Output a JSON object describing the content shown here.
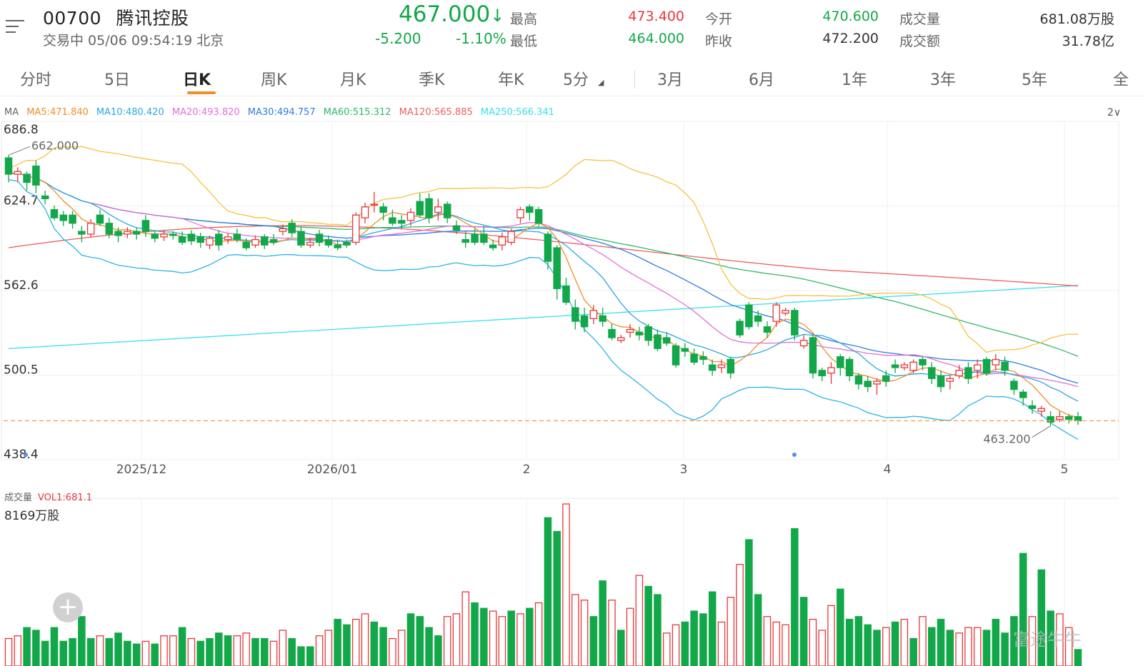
{
  "header": {
    "code": "00700",
    "name": "腾讯控股",
    "status": "交易中 05/06 09:54:19 北京",
    "price": "467.000",
    "change": "-5.200",
    "change_pct": "-1.10%",
    "high_label": "最高",
    "high": "473.400",
    "low_label": "最低",
    "low": "464.000",
    "open_label": "今开",
    "open": "470.600",
    "prev_label": "昨收",
    "prev": "472.200",
    "volume_label": "成交量",
    "volume": "681.08万股",
    "turnover_label": "成交额",
    "turnover": "31.78亿"
  },
  "tabs": [
    "分时",
    "5日",
    "日K",
    "周K",
    "月K",
    "季K",
    "年K",
    "5分",
    "3月",
    "6月",
    "1年",
    "3年",
    "5年",
    "全"
  ],
  "ma_legend": {
    "ma": "MA",
    "ma5": "MA5:471.840",
    "ma10": "MA10:480.420",
    "ma20": "MA20:493.820",
    "ma30": "MA30:494.757",
    "ma60": "MA60:515.312",
    "ma120": "MA120:565.885",
    "ma250": "MA250:566.341"
  },
  "scale_toggle": "2∨",
  "volume_panel": {
    "label": "成交量",
    "vol1": "VOL1:681.1",
    "max": "8169万股"
  },
  "add_button": "+",
  "watermark": "富途牛牛",
  "colors": {
    "up": "#e8373a",
    "down": "#12a84a",
    "ma5": "#f28c28",
    "ma10": "#2aa8df",
    "ma20": "#e36ed8",
    "ma30": "#2b7de0",
    "ma60": "#30b86a",
    "ma120": "#ee5e5e",
    "ma250": "#38e0ec",
    "boll_upper": "#f5c242",
    "boll_lower": "#2bb4e3"
  },
  "chart_data": {
    "type": "candlestick",
    "y_ticks": [
      "686.8",
      "624.7",
      "562.6",
      "500.5",
      "438.4"
    ],
    "ylim": [
      438.4,
      686.8
    ],
    "x_labels": [
      "2025/12",
      "2026/01",
      "2",
      "3",
      "4",
      "5"
    ],
    "annotations": {
      "high_marker": "662.000",
      "low_marker": "463.200"
    },
    "last_price_line": 467.0,
    "candles": [
      [
        660,
        648,
        662,
        642
      ],
      [
        648,
        650,
        653,
        642
      ],
      [
        648,
        642,
        650,
        636
      ],
      [
        654,
        640,
        658,
        634
      ],
      [
        632,
        630,
        636,
        626
      ],
      [
        622,
        616,
        625,
        614
      ],
      [
        618,
        614,
        621,
        610
      ],
      [
        618,
        612,
        621,
        608
      ],
      [
        606,
        604,
        610,
        598
      ],
      [
        604,
        612,
        615,
        602
      ],
      [
        618,
        612,
        622,
        610
      ],
      [
        612,
        604,
        616,
        601
      ],
      [
        606,
        603,
        609,
        598
      ],
      [
        604,
        606,
        609,
        601
      ],
      [
        606,
        604,
        609,
        600
      ],
      [
        614,
        606,
        618,
        602
      ],
      [
        604,
        601,
        607,
        598
      ],
      [
        602,
        604,
        607,
        599
      ],
      [
        604,
        603,
        606,
        600
      ],
      [
        602,
        598,
        606,
        596
      ],
      [
        604,
        599,
        607,
        596
      ],
      [
        602,
        598,
        605,
        594
      ],
      [
        596,
        601,
        603,
        593
      ],
      [
        604,
        596,
        607,
        592
      ],
      [
        600,
        602,
        605,
        597
      ],
      [
        604,
        600,
        608,
        598
      ],
      [
        598,
        594,
        601,
        592
      ],
      [
        596,
        600,
        603,
        594
      ],
      [
        602,
        596,
        604,
        593
      ],
      [
        600,
        598,
        604,
        596
      ],
      [
        606,
        608,
        611,
        603
      ],
      [
        612,
        605,
        615,
        602
      ],
      [
        606,
        596,
        609,
        594
      ],
      [
        596,
        598,
        601,
        594
      ],
      [
        604,
        598,
        607,
        595
      ],
      [
        600,
        596,
        603,
        594
      ],
      [
        596,
        594,
        600,
        592
      ],
      [
        598,
        596,
        600,
        594
      ],
      [
        598,
        618,
        620,
        596
      ],
      [
        616,
        624,
        627,
        612
      ],
      [
        626,
        626,
        635,
        620
      ],
      [
        624,
        620,
        627,
        614
      ],
      [
        616,
        612,
        622,
        610
      ],
      [
        614,
        612,
        618,
        608
      ],
      [
        614,
        620,
        623,
        610
      ],
      [
        628,
        618,
        634,
        616
      ],
      [
        630,
        616,
        634,
        612
      ],
      [
        620,
        624,
        630,
        614
      ],
      [
        626,
        616,
        628,
        612
      ],
      [
        610,
        607,
        614,
        604
      ],
      [
        600,
        598,
        606,
        594
      ],
      [
        604,
        598,
        608,
        596
      ],
      [
        604,
        598,
        610,
        596
      ],
      [
        596,
        594,
        600,
        592
      ],
      [
        596,
        602,
        605,
        592
      ],
      [
        598,
        606,
        608,
        596
      ],
      [
        616,
        622,
        624,
        612
      ],
      [
        624,
        620,
        626,
        614
      ],
      [
        622,
        612,
        624,
        610
      ],
      [
        604,
        584,
        606,
        578
      ],
      [
        594,
        564,
        596,
        556
      ],
      [
        566,
        554,
        572,
        552
      ],
      [
        550,
        540,
        556,
        534
      ],
      [
        544,
        536,
        550,
        532
      ],
      [
        542,
        548,
        552,
        538
      ],
      [
        544,
        540,
        550,
        536
      ],
      [
        534,
        528,
        538,
        526
      ],
      [
        526,
        528,
        530,
        524
      ],
      [
        532,
        534,
        538,
        528
      ],
      [
        532,
        530,
        536,
        526
      ],
      [
        536,
        526,
        538,
        522
      ],
      [
        530,
        520,
        534,
        518
      ],
      [
        528,
        524,
        532,
        522
      ],
      [
        522,
        508,
        524,
        506
      ],
      [
        520,
        518,
        524,
        514
      ],
      [
        516,
        510,
        520,
        508
      ],
      [
        514,
        512,
        518,
        508
      ],
      [
        508,
        504,
        512,
        500
      ],
      [
        506,
        508,
        512,
        502
      ],
      [
        512,
        502,
        514,
        498
      ],
      [
        540,
        530,
        542,
        528
      ],
      [
        552,
        536,
        554,
        534
      ],
      [
        544,
        540,
        548,
        536
      ],
      [
        536,
        532,
        540,
        528
      ],
      [
        540,
        552,
        554,
        536
      ],
      [
        546,
        548,
        550,
        544
      ],
      [
        548,
        530,
        550,
        526
      ],
      [
        522,
        526,
        530,
        520
      ],
      [
        528,
        502,
        530,
        498
      ],
      [
        504,
        500,
        506,
        496
      ],
      [
        502,
        506,
        510,
        494
      ],
      [
        514,
        506,
        516,
        500
      ],
      [
        512,
        500,
        514,
        496
      ],
      [
        500,
        494,
        502,
        490
      ],
      [
        496,
        492,
        500,
        488
      ],
      [
        494,
        496,
        498,
        486
      ],
      [
        500,
        496,
        504,
        492
      ],
      [
        508,
        506,
        512,
        502
      ],
      [
        506,
        508,
        510,
        504
      ],
      [
        504,
        510,
        512,
        502
      ],
      [
        512,
        508,
        514,
        504
      ],
      [
        506,
        498,
        510,
        494
      ],
      [
        500,
        492,
        504,
        488
      ],
      [
        496,
        498,
        500,
        490
      ],
      [
        500,
        504,
        508,
        498
      ],
      [
        506,
        498,
        510,
        494
      ],
      [
        504,
        508,
        512,
        498
      ],
      [
        512,
        502,
        514,
        500
      ],
      [
        508,
        512,
        516,
        504
      ],
      [
        510,
        504,
        514,
        500
      ],
      [
        496,
        490,
        498,
        486
      ],
      [
        488,
        484,
        490,
        478
      ],
      [
        478,
        476,
        482,
        472
      ],
      [
        474,
        476,
        478,
        470
      ],
      [
        470,
        466,
        474,
        463.2
      ],
      [
        468,
        470,
        474,
        466
      ],
      [
        470,
        468,
        472,
        465
      ],
      [
        470,
        467,
        473.4,
        464
      ]
    ],
    "volumes": [
      [
        10,
        0
      ],
      [
        11,
        0
      ],
      [
        14,
        1
      ],
      [
        13,
        1
      ],
      [
        9,
        1
      ],
      [
        14,
        1
      ],
      [
        9,
        1
      ],
      [
        10,
        1
      ],
      [
        18,
        1
      ],
      [
        10,
        1
      ],
      [
        11,
        0
      ],
      [
        10,
        1
      ],
      [
        12,
        1
      ],
      [
        9,
        1
      ],
      [
        8,
        1
      ],
      [
        9,
        0
      ],
      [
        8,
        1
      ],
      [
        11,
        0
      ],
      [
        11,
        0
      ],
      [
        14,
        1
      ],
      [
        10,
        0
      ],
      [
        9,
        1
      ],
      [
        10,
        1
      ],
      [
        12,
        1
      ],
      [
        11,
        1
      ],
      [
        11,
        0
      ],
      [
        12,
        0
      ],
      [
        10,
        1
      ],
      [
        10,
        1
      ],
      [
        9,
        0
      ],
      [
        13,
        0
      ],
      [
        10,
        1
      ],
      [
        7,
        1
      ],
      [
        7,
        1
      ],
      [
        11,
        0
      ],
      [
        13,
        0
      ],
      [
        17,
        1
      ],
      [
        15,
        1
      ],
      [
        17,
        0
      ],
      [
        19,
        0
      ],
      [
        16,
        1
      ],
      [
        14,
        1
      ],
      [
        10,
        0
      ],
      [
        13,
        0
      ],
      [
        19,
        1
      ],
      [
        18,
        1
      ],
      [
        14,
        1
      ],
      [
        11,
        1
      ],
      [
        18,
        0
      ],
      [
        19,
        0
      ],
      [
        27,
        0
      ],
      [
        23,
        1
      ],
      [
        21,
        1
      ],
      [
        20,
        0
      ],
      [
        18,
        0
      ],
      [
        20,
        1
      ],
      [
        19,
        0
      ],
      [
        21,
        1
      ],
      [
        23,
        0
      ],
      [
        54,
        1
      ],
      [
        49,
        1
      ],
      [
        59,
        0
      ],
      [
        26,
        0
      ],
      [
        24,
        0
      ],
      [
        18,
        1
      ],
      [
        31,
        1
      ],
      [
        24,
        0
      ],
      [
        13,
        1
      ],
      [
        21,
        0
      ],
      [
        33,
        0
      ],
      [
        29,
        1
      ],
      [
        26,
        1
      ],
      [
        12,
        0
      ],
      [
        15,
        0
      ],
      [
        16,
        1
      ],
      [
        20,
        1
      ],
      [
        19,
        1
      ],
      [
        27,
        1
      ],
      [
        16,
        0
      ],
      [
        25,
        0
      ],
      [
        37,
        0
      ],
      [
        46,
        1
      ],
      [
        26,
        1
      ],
      [
        18,
        0
      ],
      [
        16,
        0
      ],
      [
        15,
        0
      ],
      [
        50,
        1
      ],
      [
        25,
        1
      ],
      [
        17,
        0
      ],
      [
        13,
        0
      ],
      [
        22,
        0
      ],
      [
        28,
        1
      ],
      [
        17,
        1
      ],
      [
        18,
        1
      ],
      [
        15,
        1
      ],
      [
        13,
        1
      ],
      [
        14,
        0
      ],
      [
        16,
        1
      ],
      [
        17,
        0
      ],
      [
        10,
        1
      ],
      [
        18,
        0
      ],
      [
        14,
        1
      ],
      [
        17,
        1
      ],
      [
        13,
        1
      ],
      [
        12,
        0
      ],
      [
        14,
        0
      ],
      [
        14,
        0
      ],
      [
        13,
        1
      ],
      [
        17,
        1
      ],
      [
        12,
        1
      ],
      [
        18,
        1
      ],
      [
        41,
        1
      ],
      [
        18,
        0
      ],
      [
        35,
        1
      ],
      [
        20,
        1
      ],
      [
        19,
        0
      ],
      [
        14,
        0
      ],
      [
        6,
        1
      ]
    ]
  }
}
